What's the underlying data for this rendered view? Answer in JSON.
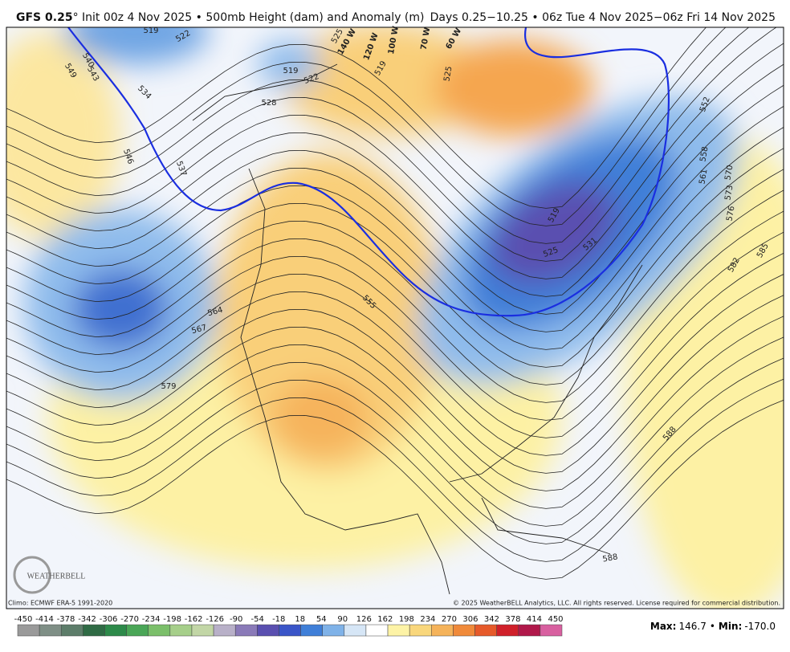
{
  "header": {
    "model": "GFS 0.25",
    "init": "° Init 00z 4 Nov 2025 • 500mb Height (dam) and Anomaly (m)",
    "valid": "Days 0.25−10.25 • 06z Tue 4 Nov 2025−06z Fri 14 Nov 2025"
  },
  "map": {
    "contour_labels": [
      "519",
      "522",
      "540",
      "543",
      "549",
      "534",
      "546",
      "537",
      "528",
      "519",
      "522",
      "525",
      "519",
      "525",
      "552",
      "558",
      "561",
      "570",
      "573",
      "576",
      "582",
      "585",
      "519",
      "525",
      "531",
      "555",
      "564",
      "567",
      "579",
      "588",
      "588"
    ],
    "longitude_labels": [
      "140 W",
      "120 W",
      "100 W",
      "70 W",
      "60 W"
    ],
    "logo": "WEATHERBELL"
  },
  "footer": {
    "climo": "Climo: ECMWF ERA-5 1991-2020",
    "copyright": "© 2025 WeatherBELL Analytics, LLC. All rights reserved. License required for commercial distribution."
  },
  "colorbar": {
    "ticks": [
      -450,
      -414,
      -378,
      -342,
      -306,
      -270,
      -234,
      -198,
      -162,
      -126,
      -90,
      -54,
      -18,
      18,
      54,
      90,
      126,
      162,
      198,
      234,
      270,
      306,
      342,
      378,
      414,
      450
    ]
  },
  "stats": {
    "max_label": "Max:",
    "max": "146.7",
    "separator": "•",
    "min_label": "Min:",
    "min": "-170.0"
  }
}
